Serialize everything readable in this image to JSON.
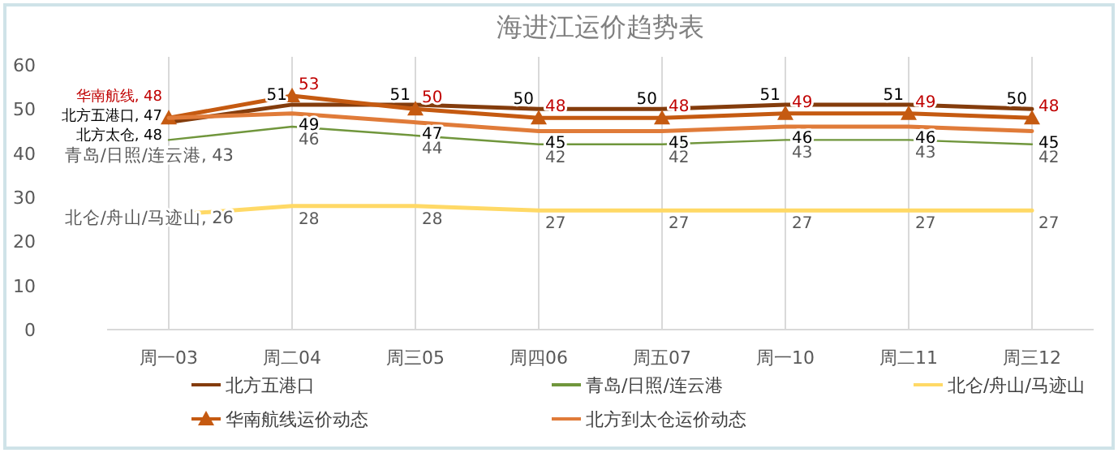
{
  "chart_data": {
    "type": "line",
    "title": "海进江运价趋势表",
    "categories": [
      "周一03",
      "周二04",
      "周三05",
      "周四06",
      "周五07",
      "周一10",
      "周二11",
      "周三12"
    ],
    "ylim": [
      0,
      60
    ],
    "yticks": [
      0,
      10,
      20,
      30,
      40,
      50,
      60
    ],
    "grid": "x",
    "legend": "bottom",
    "series": [
      {
        "name": "北方五港口",
        "color": "#843c0c",
        "marker": "none",
        "values": [
          47,
          51,
          51,
          50,
          50,
          51,
          51,
          50
        ],
        "value_labels": [
          "北方五港口, 47",
          "51",
          "51",
          "50",
          "50",
          "51",
          "51",
          "50"
        ]
      },
      {
        "name": "青岛/日照/连云港",
        "color": "#70963c",
        "marker": "none",
        "values": [
          43,
          46,
          44,
          42,
          42,
          43,
          43,
          42
        ],
        "value_labels": [
          "青岛/日照/连云港, 43",
          "46",
          "44",
          "42",
          "42",
          "43",
          "43",
          "42"
        ]
      },
      {
        "name": "北仑/舟山/马迹山",
        "color": "#ffd966",
        "marker": "none",
        "values": [
          26,
          28,
          28,
          27,
          27,
          27,
          27,
          27
        ],
        "value_labels": [
          "北仑/舟山/马迹山, 26",
          "28",
          "28",
          "27",
          "27",
          "27",
          "27",
          "27"
        ]
      },
      {
        "name": "华南航线运价动态",
        "color": "#c55a11",
        "marker": "triangle",
        "values": [
          48,
          53,
          50,
          48,
          48,
          49,
          49,
          48
        ],
        "value_labels": [
          "华南航线, 48",
          "53",
          "50",
          "48",
          "48",
          "49",
          "49",
          "48"
        ]
      },
      {
        "name": "北方到太仓运价动态",
        "color": "#e07b39",
        "marker": "none",
        "values": [
          48,
          49,
          47,
          45,
          45,
          46,
          46,
          45
        ],
        "value_labels": [
          "北方太仓, 48",
          "49",
          "47",
          "45",
          "45",
          "46",
          "46",
          "45"
        ]
      }
    ]
  }
}
